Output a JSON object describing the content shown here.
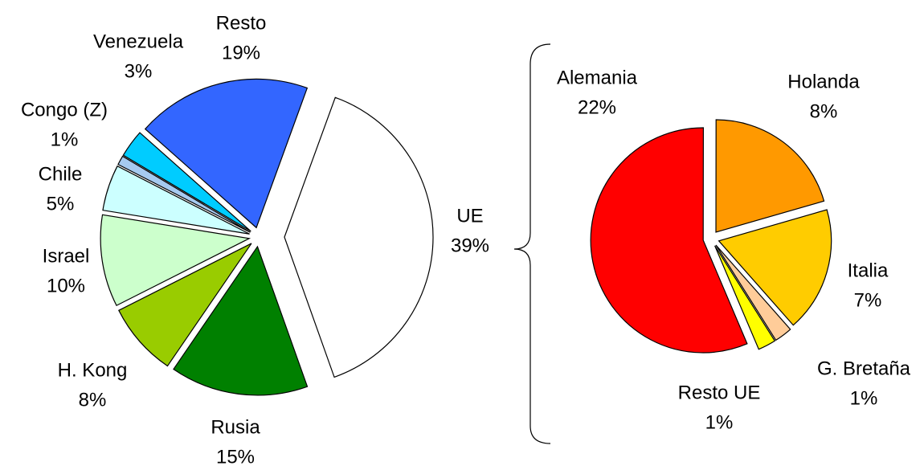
{
  "chart_data": [
    {
      "type": "pie",
      "categories": [
        "UE",
        "Rusia",
        "H. Kong",
        "Israel",
        "Chile",
        "Congo (Z)",
        "Venezuela",
        "Resto"
      ],
      "values": [
        39,
        15,
        8,
        10,
        5,
        1,
        3,
        19
      ],
      "value_labels": [
        "39%",
        "15%",
        "8%",
        "10%",
        "5%",
        "1%",
        "3%",
        "19%"
      ],
      "colors": [
        "#ffffff",
        "#008000",
        "#99cc00",
        "#ccffcc",
        "#ccffff",
        "#a6caf0",
        "#00ccff",
        "#3366ff"
      ]
    },
    {
      "type": "pie",
      "categories": [
        "Alemania",
        "Holanda",
        "Italia",
        "G. Bretaña",
        "Resto UE"
      ],
      "values": [
        22,
        8,
        7,
        1,
        1
      ],
      "value_labels": [
        "22%",
        "8%",
        "7%",
        "1%",
        "1%"
      ],
      "colors": [
        "#ff0000",
        "#ff9900",
        "#ffcc00",
        "#ffcc99",
        "#ffff00"
      ]
    }
  ]
}
